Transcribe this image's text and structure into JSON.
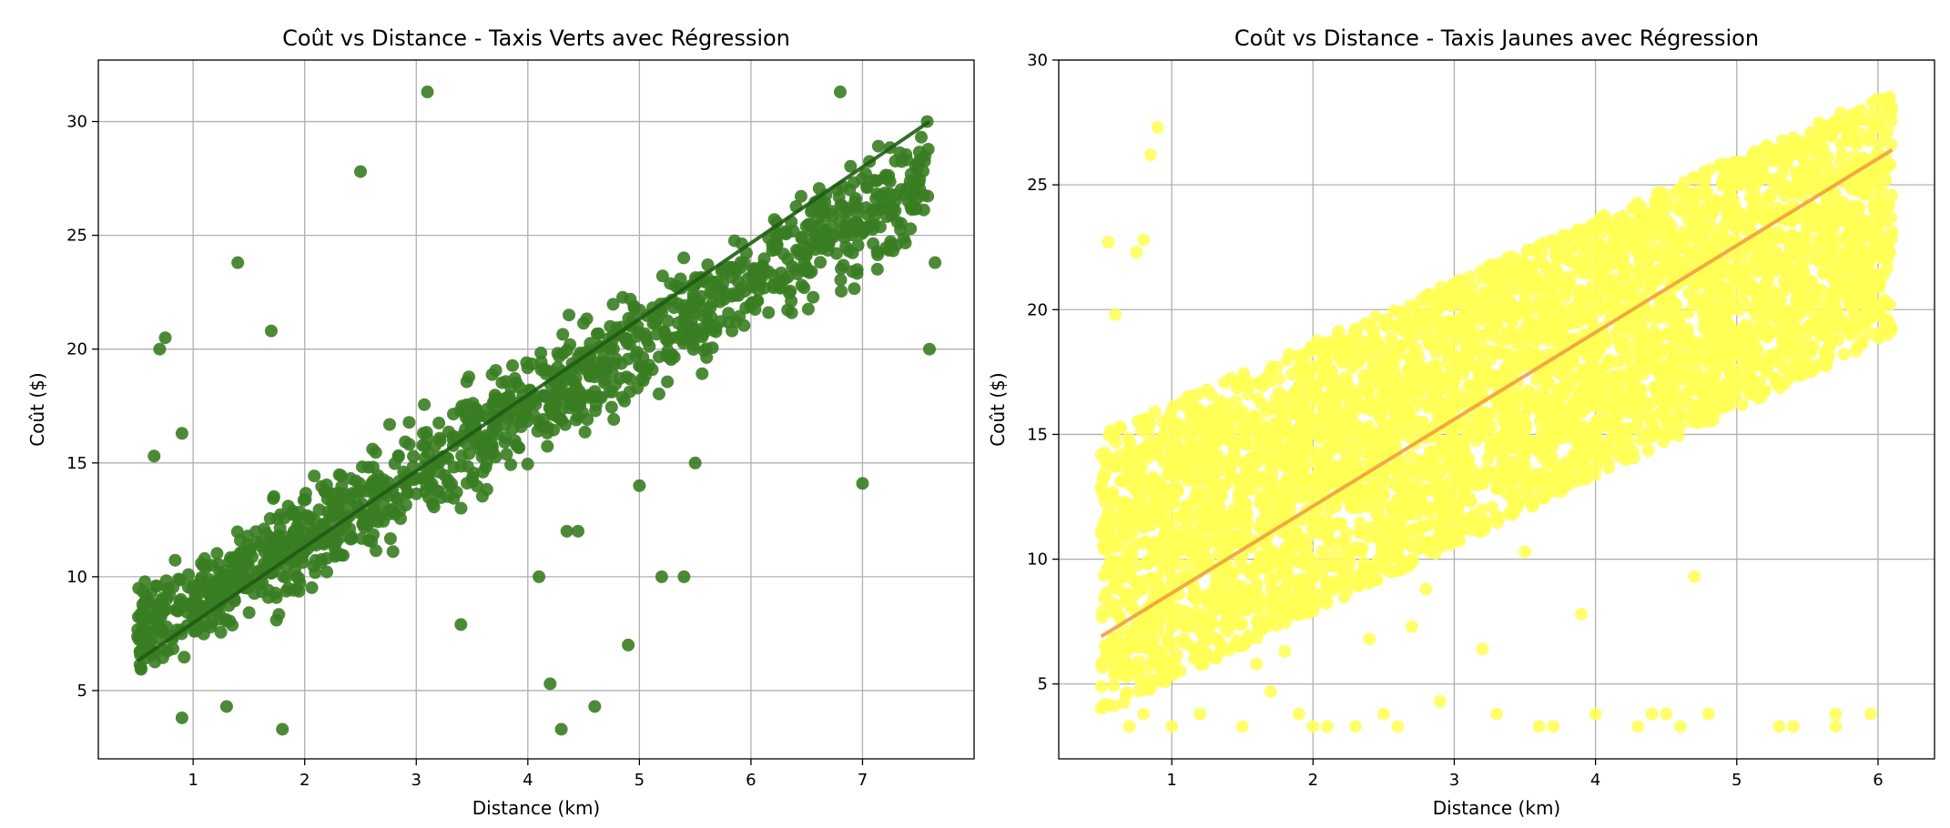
{
  "chart_data": [
    {
      "type": "scatter",
      "title": "Coût vs Distance - Taxis Verts avec Régression",
      "xlabel": "Distance (km)",
      "ylabel": "Coût ($)",
      "xlim": [
        0.15,
        8.0
      ],
      "ylim": [
        2.0,
        32.7
      ],
      "xticks": [
        1,
        2,
        3,
        4,
        5,
        6,
        7
      ],
      "yticks": [
        5,
        10,
        15,
        20,
        25,
        30
      ],
      "grid": true,
      "point_color": "#3a7d22",
      "line_color": "#1f5c14",
      "regression": {
        "x": [
          0.5,
          7.6
        ],
        "y": [
          6.3,
          30.0
        ]
      },
      "cloud": {
        "x_range": [
          0.5,
          7.6
        ],
        "band_low": [
          4.4,
          24.0
        ],
        "band_high": [
          10.5,
          31.2
        ],
        "n_points": 1300
      },
      "outliers": [
        {
          "x": 3.1,
          "y": 31.3
        },
        {
          "x": 2.5,
          "y": 27.8
        },
        {
          "x": 1.4,
          "y": 23.8
        },
        {
          "x": 0.75,
          "y": 20.5
        },
        {
          "x": 0.7,
          "y": 20.0
        },
        {
          "x": 1.7,
          "y": 20.8
        },
        {
          "x": 0.9,
          "y": 16.3
        },
        {
          "x": 0.65,
          "y": 15.3
        },
        {
          "x": 5.5,
          "y": 15.0
        },
        {
          "x": 7.0,
          "y": 14.1
        },
        {
          "x": 5.0,
          "y": 14.0
        },
        {
          "x": 4.1,
          "y": 10.0
        },
        {
          "x": 5.2,
          "y": 10.0
        },
        {
          "x": 5.4,
          "y": 10.0
        },
        {
          "x": 4.9,
          "y": 7.0
        },
        {
          "x": 3.4,
          "y": 7.9
        },
        {
          "x": 4.2,
          "y": 5.3
        },
        {
          "x": 4.6,
          "y": 4.3
        },
        {
          "x": 4.3,
          "y": 3.3
        },
        {
          "x": 1.8,
          "y": 3.3
        },
        {
          "x": 0.9,
          "y": 3.8
        },
        {
          "x": 1.3,
          "y": 4.3
        },
        {
          "x": 4.45,
          "y": 12.0
        },
        {
          "x": 4.35,
          "y": 12.0
        },
        {
          "x": 7.6,
          "y": 20.0
        },
        {
          "x": 7.65,
          "y": 23.8
        },
        {
          "x": 6.8,
          "y": 31.3
        }
      ]
    },
    {
      "type": "scatter",
      "title": "Coût vs Distance - Taxis Jaunes avec Régression",
      "xlabel": "Distance (km)",
      "ylabel": "Coût ($)",
      "xlim": [
        0.2,
        6.4
      ],
      "ylim": [
        2.0,
        30.0
      ],
      "xticks": [
        1,
        2,
        3,
        4,
        5,
        6
      ],
      "yticks": [
        5,
        10,
        15,
        20,
        25,
        30
      ],
      "grid": true,
      "point_color": "#ffff55",
      "line_color": "#f0a040",
      "regression": {
        "x": [
          0.5,
          6.1
        ],
        "y": [
          6.9,
          26.4
        ]
      },
      "cloud": {
        "x_range": [
          0.5,
          6.1
        ],
        "band_low": [
          3.8,
          19.0
        ],
        "band_high": [
          15.0,
          28.8
        ],
        "n_points": 4500
      },
      "outliers": [
        {
          "x": 0.55,
          "y": 22.7
        },
        {
          "x": 0.9,
          "y": 27.3
        },
        {
          "x": 0.85,
          "y": 26.2
        },
        {
          "x": 0.75,
          "y": 22.3
        },
        {
          "x": 0.8,
          "y": 22.8
        },
        {
          "x": 0.6,
          "y": 19.8
        },
        {
          "x": 2.4,
          "y": 6.8
        },
        {
          "x": 2.8,
          "y": 8.8
        },
        {
          "x": 2.7,
          "y": 7.3
        },
        {
          "x": 3.2,
          "y": 6.4
        },
        {
          "x": 3.5,
          "y": 10.3
        },
        {
          "x": 3.9,
          "y": 7.8
        },
        {
          "x": 4.7,
          "y": 9.3
        },
        {
          "x": 1.8,
          "y": 6.3
        },
        {
          "x": 1.6,
          "y": 5.8
        },
        {
          "x": 1.7,
          "y": 4.7
        },
        {
          "x": 2.9,
          "y": 4.3
        },
        {
          "x": 3.3,
          "y": 3.8
        },
        {
          "x": 4.5,
          "y": 3.8
        },
        {
          "x": 4.8,
          "y": 3.8
        },
        {
          "x": 5.3,
          "y": 3.3
        },
        {
          "x": 5.4,
          "y": 3.3
        },
        {
          "x": 5.7,
          "y": 3.3
        },
        {
          "x": 5.7,
          "y": 3.8
        },
        {
          "x": 5.95,
          "y": 3.8
        },
        {
          "x": 0.7,
          "y": 3.3
        },
        {
          "x": 0.8,
          "y": 3.8
        },
        {
          "x": 1.0,
          "y": 3.3
        },
        {
          "x": 1.2,
          "y": 3.8
        },
        {
          "x": 1.5,
          "y": 3.3
        },
        {
          "x": 1.9,
          "y": 3.8
        },
        {
          "x": 2.1,
          "y": 3.3
        },
        {
          "x": 2.3,
          "y": 3.3
        },
        {
          "x": 2.6,
          "y": 3.3
        },
        {
          "x": 3.7,
          "y": 3.3
        },
        {
          "x": 4.0,
          "y": 3.8
        },
        {
          "x": 4.3,
          "y": 3.3
        },
        {
          "x": 4.6,
          "y": 3.3
        },
        {
          "x": 4.4,
          "y": 3.8
        },
        {
          "x": 3.6,
          "y": 3.3
        },
        {
          "x": 2.5,
          "y": 3.8
        },
        {
          "x": 2.0,
          "y": 3.3
        }
      ]
    }
  ]
}
